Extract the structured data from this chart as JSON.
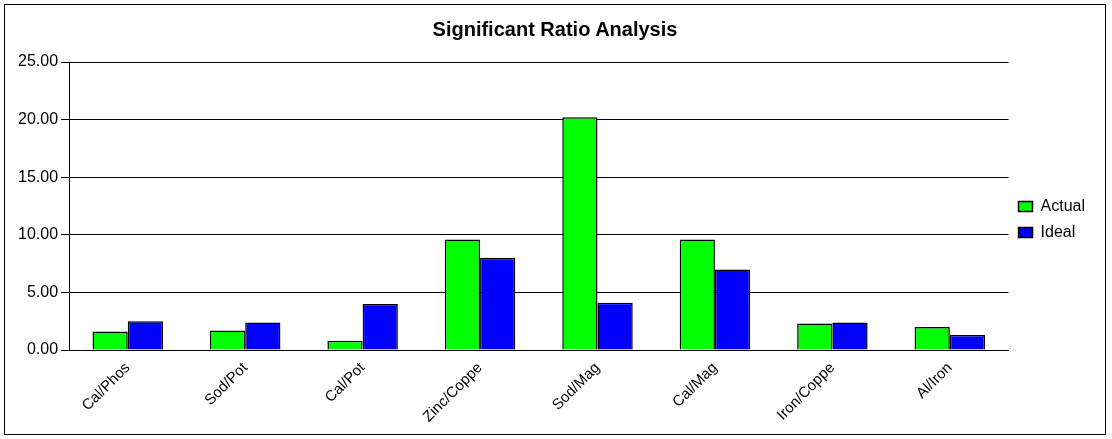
{
  "chart_data": {
    "type": "bar",
    "title": "Significant Ratio Analysis",
    "categories": [
      "Cal/Phos",
      "Sod/Pot",
      "Cal/Pot",
      "Zinc/Coppe",
      "Sod/Mag",
      "Cal/Mag",
      "Iron/Coppe",
      "Al/Iron"
    ],
    "series": [
      {
        "name": "Actual",
        "color": "#00ff00",
        "values": [
          1.6,
          1.7,
          0.8,
          9.6,
          20.2,
          9.6,
          2.3,
          2.0
        ]
      },
      {
        "name": "Ideal",
        "color": "#0000ff",
        "values": [
          2.5,
          2.4,
          4.0,
          8.0,
          4.1,
          7.0,
          2.4,
          1.3
        ]
      }
    ],
    "ylim": [
      0,
      25
    ],
    "yticks": [
      {
        "value": 0,
        "label": "0.00"
      },
      {
        "value": 5,
        "label": "5.00"
      },
      {
        "value": 10,
        "label": "10.00"
      },
      {
        "value": 15,
        "label": "15.00"
      },
      {
        "value": 20,
        "label": "20.00"
      },
      {
        "value": 25,
        "label": "25.00"
      }
    ],
    "grid": "y",
    "legend": "right"
  }
}
